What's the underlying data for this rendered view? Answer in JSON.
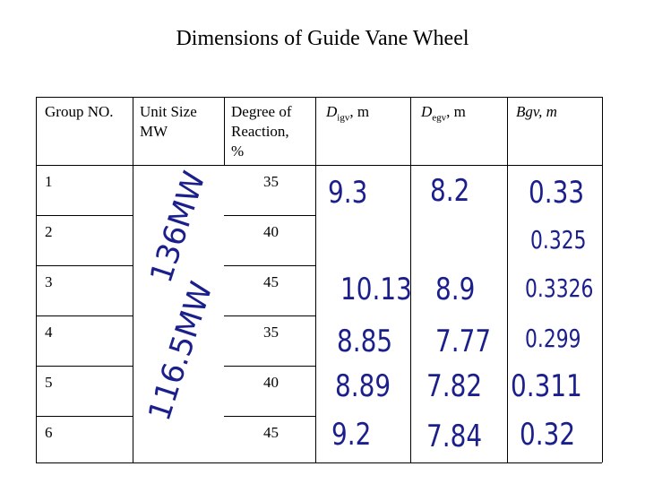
{
  "title": "Dimensions of Guide Vane Wheel",
  "headers": {
    "group_no": "Group NO.",
    "unit_size_line1": "Unit Size",
    "unit_size_line2": "MW",
    "degree_line1": "Degree of",
    "degree_line2": "Reaction,",
    "degree_line3": "%",
    "digv_main": "D",
    "digv_sub": "igv",
    "digv_unit": ", m",
    "degv_main": "D",
    "degv_sub": "egv",
    "degv_unit": ", m",
    "bgv": "Bgv, m"
  },
  "unit_groups": [
    "136MW",
    "116.5MW"
  ],
  "rows": [
    {
      "group": "1",
      "degree": "35",
      "d_igv": "9.3",
      "d_egv": "8.2",
      "b_gv": "0.33"
    },
    {
      "group": "2",
      "degree": "40",
      "d_igv": "",
      "d_egv": "",
      "b_gv": "0.325"
    },
    {
      "group": "3",
      "degree": "45",
      "d_igv": "10.13",
      "d_egv": "8.9",
      "b_gv": "0.3326"
    },
    {
      "group": "4",
      "degree": "35",
      "d_igv": "8.85",
      "d_egv": "7.77",
      "b_gv": "0.299"
    },
    {
      "group": "5",
      "degree": "40",
      "d_igv": "8.89",
      "d_egv": "7.82",
      "b_gv": "0.311"
    },
    {
      "group": "6",
      "degree": "45",
      "d_igv": "9.2",
      "d_egv": "7.84",
      "b_gv": "0.32"
    }
  ]
}
